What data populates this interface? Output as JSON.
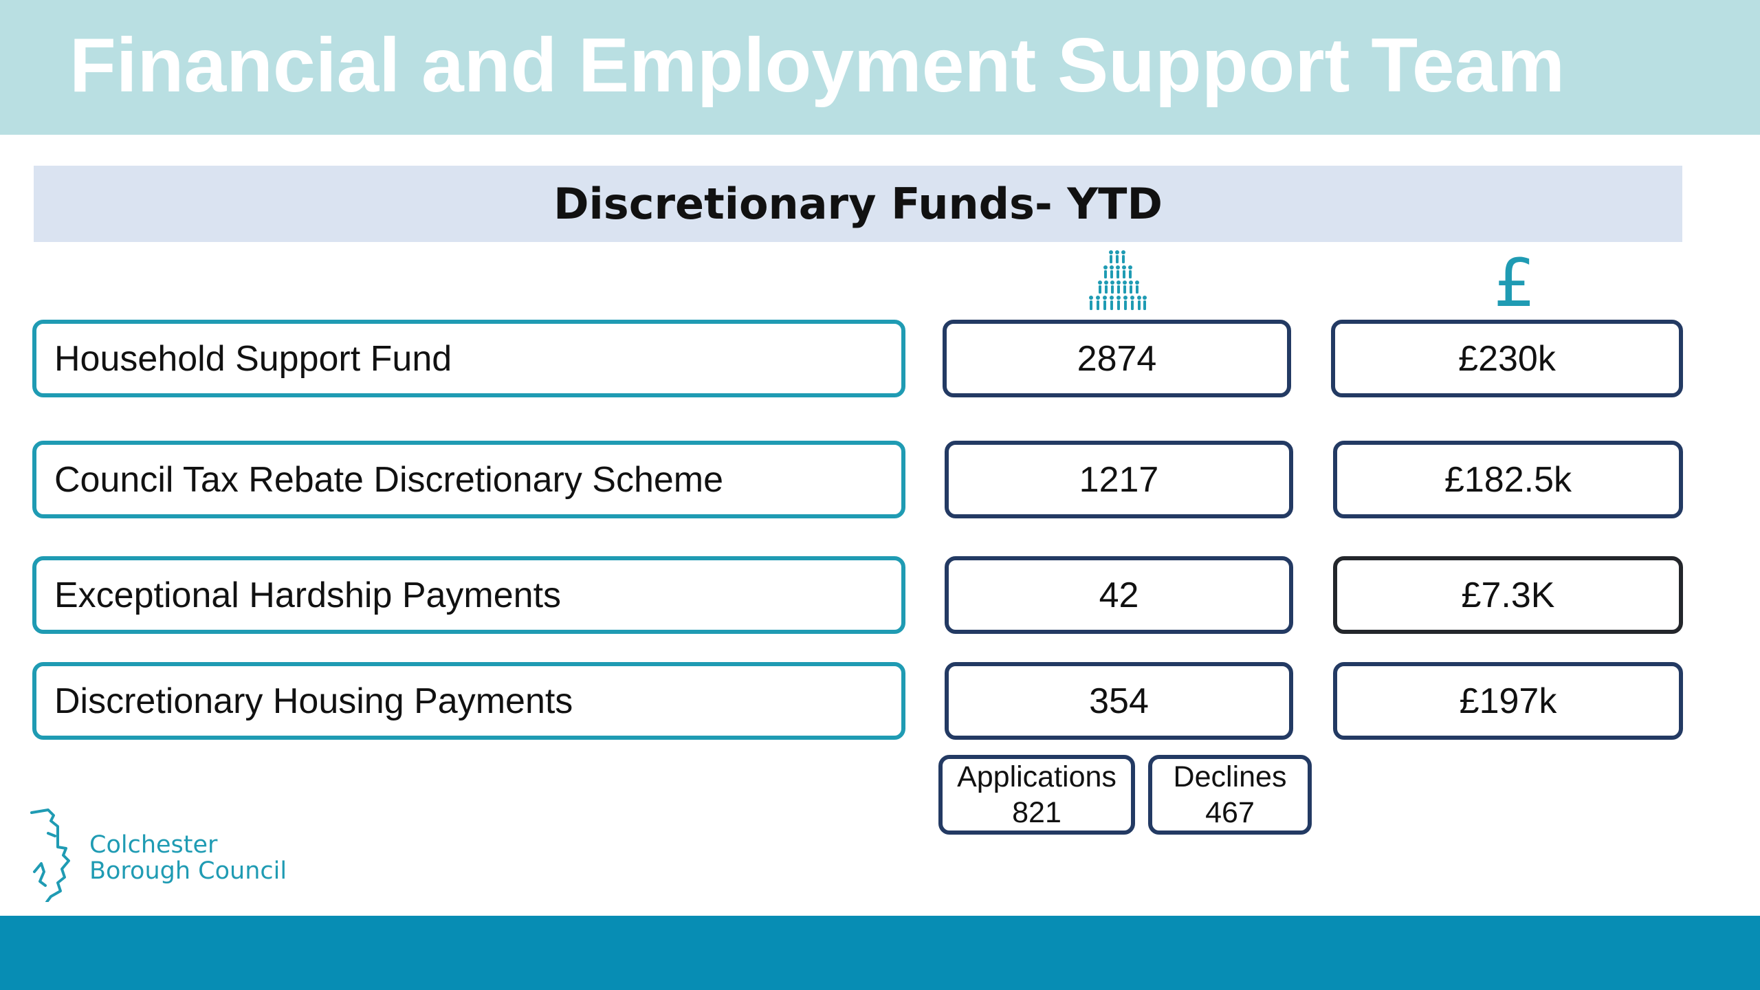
{
  "header": {
    "title": "Financial and Employment Support Team"
  },
  "section": {
    "title": "Discretionary Funds- YTD"
  },
  "columns": {
    "count_icon": "people-group-icon",
    "amount_icon": "pound-sign-icon",
    "amount_symbol": "£"
  },
  "rows": [
    {
      "label": "Household Support Fund",
      "count": "2874",
      "amount": "£230k"
    },
    {
      "label": "Council Tax Rebate Discretionary Scheme",
      "count": "1217",
      "amount": "£182.5k"
    },
    {
      "label": "Exceptional Hardship Payments",
      "count": "42",
      "amount": "£7.3K"
    },
    {
      "label": "Discretionary Housing Payments",
      "count": "354",
      "amount": "£197k"
    }
  ],
  "dhp_breakdown": {
    "applications": {
      "label": "Applications",
      "value": "821"
    },
    "declines": {
      "label": "Declines",
      "value": "467"
    }
  },
  "logo": {
    "line1": "Colchester",
    "line2": "Borough Council"
  },
  "colors": {
    "header_band": "#b9dfe2",
    "subtitle_bar": "#dae3f1",
    "teal_accent": "#1f9bb3",
    "navy_border": "#233a63",
    "footer_band": "#078db4"
  }
}
